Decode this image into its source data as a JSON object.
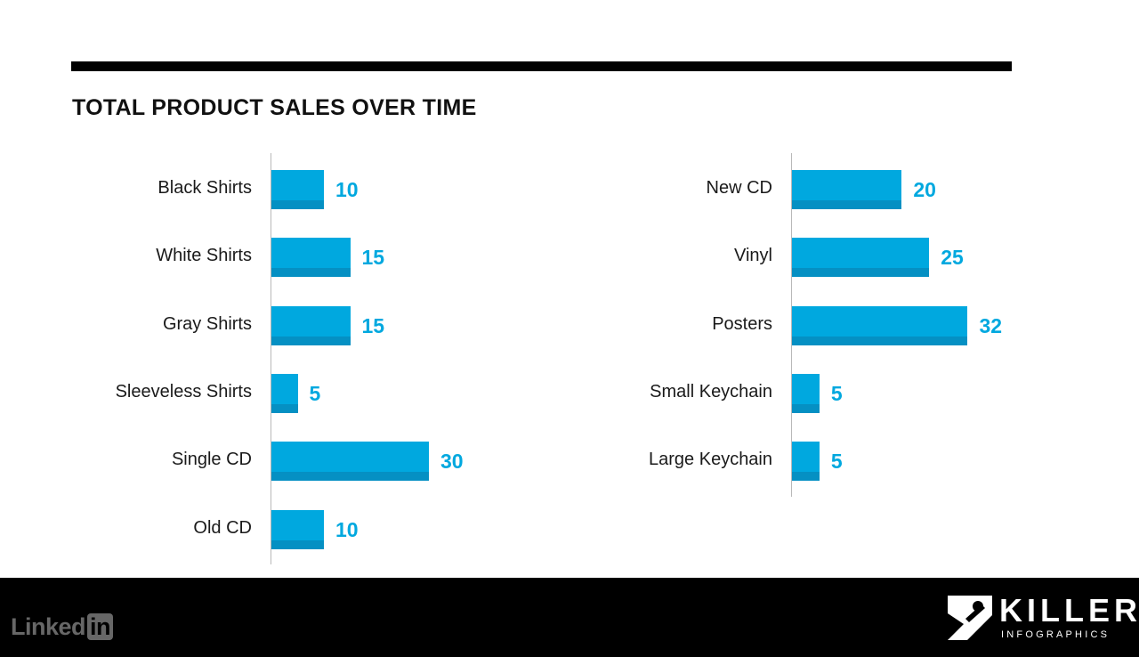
{
  "chart_data": [
    {
      "type": "bar",
      "orientation": "horizontal",
      "title": "TOTAL PRODUCT SALES OVER TIME",
      "categories": [
        "Black Shirts",
        "White Shirts",
        "Gray Shirts",
        "Sleeveless Shirts",
        "Single CD",
        "Old CD"
      ],
      "values": [
        10,
        15,
        15,
        5,
        30,
        10
      ],
      "xlim": [
        0,
        32
      ],
      "grid": false,
      "color": "#00a8df"
    },
    {
      "type": "bar",
      "orientation": "horizontal",
      "categories": [
        "New CD",
        "Vinyl",
        "Posters",
        "Small Keychain",
        "Large Keychain"
      ],
      "values": [
        20,
        25,
        32,
        5,
        5
      ],
      "xlim": [
        0,
        32
      ],
      "grid": false,
      "color": "#00a8df"
    }
  ],
  "colors": {
    "bar": "#00a8df",
    "bar_shade": "#0590c3",
    "value_label": "#00a8df",
    "rule": "#000000",
    "footer": "#000000"
  },
  "footer": {
    "linkedin_logo": {
      "text": "Linked",
      "box_text": "in"
    },
    "brand": {
      "name": "KILLER",
      "subtitle": "INFOGRAPHICS",
      "icon": "brand-mark-icon"
    }
  }
}
